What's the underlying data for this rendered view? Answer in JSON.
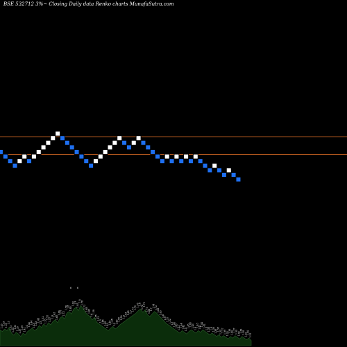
{
  "title": "BSE 532712  3%~  Closing Daily data  Renko  charts MunafaSutra.com",
  "colors": {
    "background": "#000000",
    "up_brick": "#ffffff",
    "down_brick": "#1e6ff0",
    "brick_border": "#000000",
    "ref_line": "#b4581e",
    "volume_fill": "#0b2d0b",
    "volume_stroke": "#2a5e2a",
    "label": "#ffffff"
  },
  "chart_data": {
    "type": "renko",
    "bricks": [
      {
        "level": 0,
        "dir": "down"
      },
      {
        "level": -1,
        "dir": "down"
      },
      {
        "level": -2,
        "dir": "down"
      },
      {
        "level": -3,
        "dir": "down"
      },
      {
        "level": -2,
        "dir": "up"
      },
      {
        "level": -1,
        "dir": "up"
      },
      {
        "level": -2,
        "dir": "down"
      },
      {
        "level": -1,
        "dir": "up"
      },
      {
        "level": 0,
        "dir": "up"
      },
      {
        "level": 1,
        "dir": "up"
      },
      {
        "level": 2,
        "dir": "up"
      },
      {
        "level": 3,
        "dir": "up"
      },
      {
        "level": 4,
        "dir": "up"
      },
      {
        "level": 3,
        "dir": "down"
      },
      {
        "level": 2,
        "dir": "down"
      },
      {
        "level": 1,
        "dir": "down"
      },
      {
        "level": 0,
        "dir": "down"
      },
      {
        "level": -1,
        "dir": "down"
      },
      {
        "level": -2,
        "dir": "down"
      },
      {
        "level": -3,
        "dir": "down"
      },
      {
        "level": -2,
        "dir": "up"
      },
      {
        "level": -1,
        "dir": "up"
      },
      {
        "level": 0,
        "dir": "up"
      },
      {
        "level": 1,
        "dir": "up"
      },
      {
        "level": 2,
        "dir": "up"
      },
      {
        "level": 3,
        "dir": "up"
      },
      {
        "level": 2,
        "dir": "down"
      },
      {
        "level": 1,
        "dir": "down"
      },
      {
        "level": 2,
        "dir": "up"
      },
      {
        "level": 3,
        "dir": "up"
      },
      {
        "level": 2,
        "dir": "down"
      },
      {
        "level": 1,
        "dir": "down"
      },
      {
        "level": 0,
        "dir": "down"
      },
      {
        "level": -1,
        "dir": "down"
      },
      {
        "level": -2,
        "dir": "down"
      },
      {
        "level": -1,
        "dir": "up"
      },
      {
        "level": -2,
        "dir": "down"
      },
      {
        "level": -1,
        "dir": "up"
      },
      {
        "level": -2,
        "dir": "down"
      },
      {
        "level": -1,
        "dir": "up"
      },
      {
        "level": -2,
        "dir": "down"
      },
      {
        "level": -1,
        "dir": "up"
      },
      {
        "level": -2,
        "dir": "down"
      },
      {
        "level": -3,
        "dir": "down"
      },
      {
        "level": -4,
        "dir": "down"
      },
      {
        "level": -3,
        "dir": "up"
      },
      {
        "level": -4,
        "dir": "down"
      },
      {
        "level": -5,
        "dir": "down"
      },
      {
        "level": -4,
        "dir": "up"
      },
      {
        "level": -5,
        "dir": "down"
      },
      {
        "level": -6,
        "dir": "down"
      }
    ],
    "reference_lines": [
      4,
      0
    ],
    "volume": [
      0.38,
      0.34,
      0.4,
      0.36,
      0.44,
      0.3,
      0.25,
      0.32,
      0.28,
      0.22,
      0.3,
      0.26,
      0.34,
      0.38,
      0.42,
      0.36,
      0.4,
      0.48,
      0.44,
      0.52,
      0.46,
      0.55,
      0.5,
      0.58,
      0.62,
      0.55,
      0.66,
      0.7,
      0.64,
      0.78,
      0.82,
      0.76,
      0.88,
      0.92,
      0.84,
      0.96,
      0.9,
      0.8,
      0.74,
      0.7,
      0.62,
      0.68,
      0.56,
      0.52,
      0.48,
      0.44,
      0.4,
      0.36,
      0.42,
      0.46,
      0.4,
      0.44,
      0.5,
      0.54,
      0.58,
      0.62,
      0.66,
      0.7,
      0.74,
      0.78,
      0.84,
      0.88,
      0.8,
      0.86,
      0.74,
      0.7,
      0.76,
      0.82,
      0.78,
      0.72,
      0.66,
      0.6,
      0.54,
      0.5,
      0.46,
      0.42,
      0.38,
      0.34,
      0.3,
      0.36,
      0.32,
      0.28,
      0.34,
      0.38,
      0.34,
      0.3,
      0.36,
      0.32,
      0.38,
      0.34,
      0.3,
      0.26,
      0.3,
      0.26,
      0.22,
      0.26,
      0.2,
      0.24,
      0.2,
      0.16,
      0.22,
      0.18,
      0.24,
      0.2,
      0.16,
      0.22,
      0.18,
      0.14,
      0.18,
      0.12
    ],
    "volume_labels": [
      "1.37",
      "1.35",
      "1.33",
      "1.31",
      "1.3",
      "1.32",
      "1.34",
      "1.33",
      "1.35",
      "1.37",
      "1.39",
      "1.41",
      "1.4",
      "1.42",
      "1.44",
      "1.45",
      "1.43",
      "1.48",
      "1.5",
      "1.52",
      "1.53",
      "1.55",
      "1.57",
      "1.6",
      "1.63",
      "1.65",
      "1.66",
      "1.7",
      "1.73",
      "1.76",
      "1.8",
      "1.85",
      "1.92",
      "1.9",
      "1.85",
      "1.8",
      "1.78",
      "1.72",
      "1.68",
      "1.63",
      "1.6",
      "1.58",
      "1.55",
      "1.52",
      "1.5",
      "1.48",
      "1.45",
      "1.43",
      "1.45",
      "1.48",
      "1.5",
      "1.53",
      "1.55",
      "1.58",
      "1.6",
      "1.63",
      "1.65",
      "1.7",
      "1.73",
      "1.75",
      "1.78",
      "1.8",
      "1.76",
      "1.79",
      "1.72",
      "1.68",
      "1.7",
      "1.74",
      "1.72",
      "1.68",
      "1.63",
      "1.6",
      "1.57",
      "1.55",
      "1.52",
      "1.5",
      "1.48",
      "1.45",
      "1.42",
      "1.44",
      "1.42",
      "1.4",
      "1.43",
      "1.45",
      "1.43",
      "1.4",
      "1.43",
      "1.41",
      "1.44",
      "1.42",
      "1.4",
      "1.38",
      "1.4",
      "1.38",
      "1.36",
      "1.38",
      "1.35",
      "1.37",
      "1.35",
      "1.33",
      "1.36",
      "1.34",
      "1.37",
      "1.35",
      "1.33",
      "1.36",
      "1.34",
      "1.32",
      "1.34",
      "1.31"
    ],
    "peak_labels": [
      "6",
      "6"
    ]
  }
}
